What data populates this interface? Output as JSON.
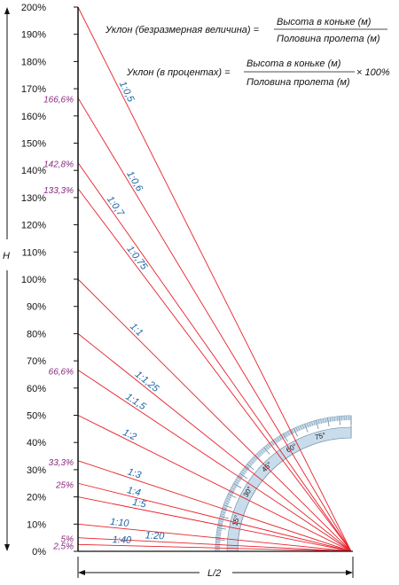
{
  "colors": {
    "slope_line": "#e8202a",
    "axis": "#111111",
    "ratio_label": "#1a63a6",
    "percent_label": "#8a2a80",
    "protractor_band": "#c9dceb",
    "protractor_edge": "#6b8aa3"
  },
  "formulas": {
    "f1": {
      "lhs": "Уклон (безразмерная величина) =",
      "numerator": "Высота в коньке (м)",
      "denominator": "Половина пролета (м)"
    },
    "f2": {
      "lhs": "Уклон (в процентах) =",
      "numerator": "Высота в коньке (м)",
      "denominator": "Половина пролета (м)",
      "suffix": "× 100%"
    }
  },
  "axis_labels": {
    "vertical": "H",
    "horizontal": "L/2"
  },
  "y_ticks": [
    {
      "value": 200,
      "label": "200%"
    },
    {
      "value": 190,
      "label": "190%"
    },
    {
      "value": 180,
      "label": "180%"
    },
    {
      "value": 170,
      "label": "170%"
    },
    {
      "value": 160,
      "label": "160%"
    },
    {
      "value": 150,
      "label": "150%"
    },
    {
      "value": 140,
      "label": "140%"
    },
    {
      "value": 130,
      "label": "130%"
    },
    {
      "value": 120,
      "label": "120%"
    },
    {
      "value": 110,
      "label": "110%"
    },
    {
      "value": 100,
      "label": "100%"
    },
    {
      "value": 90,
      "label": "90%"
    },
    {
      "value": 80,
      "label": "80%"
    },
    {
      "value": 70,
      "label": "70%"
    },
    {
      "value": 60,
      "label": "60%"
    },
    {
      "value": 50,
      "label": "50%"
    },
    {
      "value": 40,
      "label": "40%"
    },
    {
      "value": 30,
      "label": "30%"
    },
    {
      "value": 20,
      "label": "20%"
    },
    {
      "value": 10,
      "label": "10%"
    },
    {
      "value": 0,
      "label": "0%"
    }
  ],
  "slopes": [
    {
      "ratio": "1:0,5",
      "percent": 200
    },
    {
      "ratio": "1:0,6",
      "percent": 166.6,
      "percent_label": "166,6%"
    },
    {
      "ratio": "1:0,7",
      "percent": 142.8,
      "percent_label": "142,8%"
    },
    {
      "ratio": "1:0,75",
      "percent": 133.3,
      "percent_label": "133,3%"
    },
    {
      "ratio": "1:1",
      "percent": 100
    },
    {
      "ratio": "1:1,25",
      "percent": 80
    },
    {
      "ratio": "1:1,5",
      "percent": 66.6,
      "percent_label": "66,6%"
    },
    {
      "ratio": "1:2",
      "percent": 50
    },
    {
      "ratio": "1:3",
      "percent": 33.3,
      "percent_label": "33,3%"
    },
    {
      "ratio": "1:4",
      "percent": 25,
      "percent_label": "25%"
    },
    {
      "ratio": "1:5",
      "percent": 20
    },
    {
      "ratio": "1:10",
      "percent": 10
    },
    {
      "ratio": "1:20",
      "percent": 5,
      "percent_label": "5%"
    },
    {
      "ratio": "1:40",
      "percent": 2.5,
      "percent_label": "2,5%"
    }
  ],
  "protractor": {
    "angle_labels": [
      {
        "deg": 15,
        "label": "15°"
      },
      {
        "deg": 30,
        "label": "30°"
      },
      {
        "deg": 45,
        "label": "45°"
      },
      {
        "deg": 60,
        "label": "60°"
      },
      {
        "deg": 75,
        "label": "75°"
      }
    ]
  }
}
